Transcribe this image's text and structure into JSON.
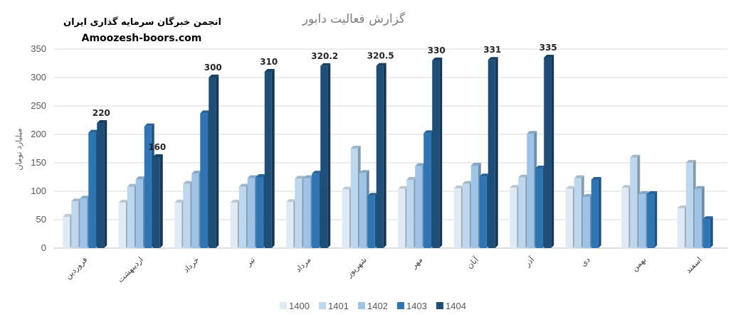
{
  "header": {
    "org_name": "انجمن خبرگان سرمایه گذاری ایران",
    "site": "Amoozesh-boors.com"
  },
  "chart_data": {
    "type": "bar",
    "title": "گزارش فعالیت دابور",
    "ylabel": "میلیارد تومان",
    "xlabel": "",
    "ylim": [
      0,
      350
    ],
    "yticks": [
      0,
      50,
      100,
      150,
      200,
      250,
      300,
      350
    ],
    "grid": true,
    "legend_position": "bottom",
    "categories": [
      "فروردین",
      "اردیبهشت",
      "خرداد",
      "تیر",
      "مرداد",
      "شهریور",
      "مهر",
      "آبان",
      "آذر",
      "دی",
      "بهمن",
      "اسفند"
    ],
    "series": [
      {
        "name": "1400",
        "color": "#deebf7",
        "values": [
          55,
          80,
          80,
          80,
          81,
          103,
          104,
          105,
          106,
          104,
          106,
          70
        ]
      },
      {
        "name": "1401",
        "color": "#bdd7ee",
        "values": [
          82,
          108,
          113,
          108,
          122,
          175,
          120,
          113,
          124,
          123,
          159,
          150
        ]
      },
      {
        "name": "1402",
        "color": "#9dc3e6",
        "values": [
          87,
          121,
          131,
          123,
          123,
          132,
          144,
          145,
          201,
          90,
          95,
          104
        ]
      },
      {
        "name": "1403",
        "color": "#2e75b6",
        "values": [
          203,
          214,
          237,
          125,
          131,
          92,
          202,
          126,
          140,
          120,
          95,
          51
        ]
      },
      {
        "name": "1404",
        "color": "#1f4e79",
        "values": [
          220,
          160,
          300,
          310,
          320.2,
          320.5,
          330,
          331,
          335,
          null,
          null,
          null
        ]
      }
    ],
    "data_labels": {
      "series": "1404",
      "values": [
        "220",
        "160",
        "300",
        "310",
        "320.2",
        "320.5",
        "330",
        "331",
        "335"
      ]
    }
  }
}
